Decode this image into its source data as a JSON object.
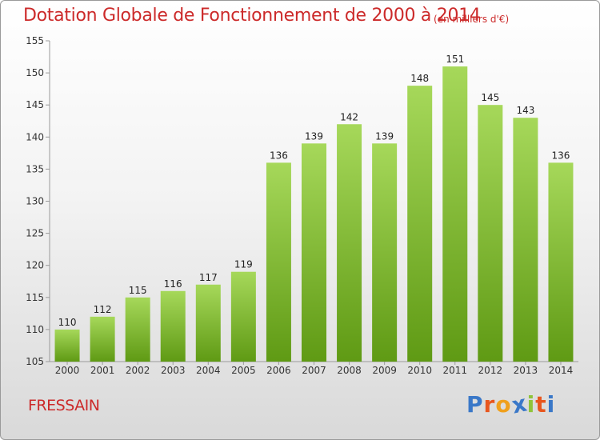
{
  "header": {
    "title": "Dotation Globale de Fonctionnement de 2000 à 2014",
    "subtitle": "(en milliers d'€)"
  },
  "footer": {
    "commune": "FRESSAIN",
    "logo_text": "Proxiti",
    "logo_colors": [
      "#3a78c8",
      "#e8561e",
      "#f0a01c",
      "#3a78c8",
      "#8fc43a",
      "#e8561e",
      "#3a78c8"
    ]
  },
  "chart_data": {
    "type": "bar",
    "title": "Dotation Globale de Fonctionnement de 2000 à 2014",
    "subtitle": "(en milliers d'€)",
    "categories": [
      "2000",
      "2001",
      "2002",
      "2003",
      "2004",
      "2005",
      "2006",
      "2007",
      "2008",
      "2009",
      "2010",
      "2011",
      "2012",
      "2013",
      "2014"
    ],
    "values": [
      110,
      112,
      115,
      116,
      117,
      119,
      136,
      139,
      142,
      139,
      148,
      151,
      145,
      143,
      136
    ],
    "ylim": [
      105,
      155
    ],
    "yticks": [
      105,
      110,
      115,
      120,
      125,
      130,
      135,
      140,
      145,
      150,
      155
    ],
    "grid": false,
    "colors": {
      "bar_top": "#a6d85a",
      "bar_bottom": "#5f9a14",
      "label": "#222222",
      "axis": "#9a9a9a"
    }
  }
}
